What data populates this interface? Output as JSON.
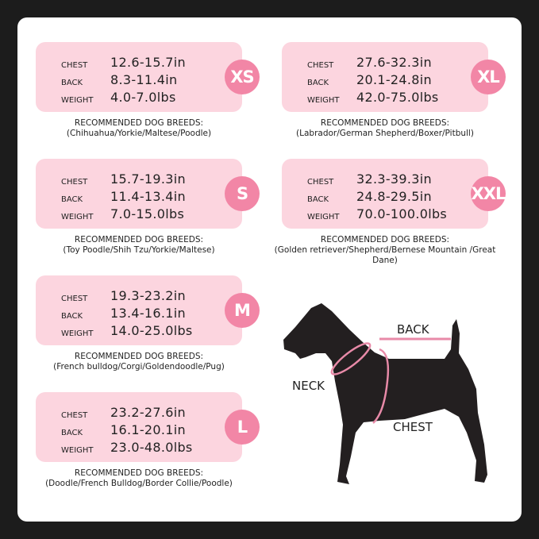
{
  "labels": {
    "chest": "CHEST",
    "back": "BACK",
    "weight": "WEIGHT",
    "recommended": "RECOMMENDED DOG BREEDS:"
  },
  "sizes": [
    {
      "size": "XS",
      "chest": "12.6-15.7in",
      "back": "8.3-11.4in",
      "weight": "4.0-7.0lbs",
      "breeds": "(Chihuahua/Yorkie/Maltese/Poodle)"
    },
    {
      "size": "S",
      "chest": "15.7-19.3in",
      "back": "11.4-13.4in",
      "weight": "7.0-15.0lbs",
      "breeds": "(Toy Poodle/Shih Tzu/Yorkie/Maltese)"
    },
    {
      "size": "M",
      "chest": "19.3-23.2in",
      "back": "13.4-16.1in",
      "weight": "14.0-25.0lbs",
      "breeds": "(French bulldog/Corgi/Goldendoodle/Pug)"
    },
    {
      "size": "L",
      "chest": "23.2-27.6in",
      "back": "16.1-20.1in",
      "weight": "23.0-48.0lbs",
      "breeds": "(Doodle/French Bulldog/Border Collie/Poodle)"
    },
    {
      "size": "XL",
      "chest": "27.6-32.3in",
      "back": "20.1-24.8in",
      "weight": "42.0-75.0lbs",
      "breeds": "(Labrador/German Shepherd/Boxer/Pitbull)"
    },
    {
      "size": "XXL",
      "chest": "32.3-39.3in",
      "back": "24.8-29.5in",
      "weight": "70.0-100.0lbs",
      "breeds": "(Golden retriever/Shepherd/Bernese Mountain /Great Dane)"
    }
  ],
  "diagram": {
    "back": "BACK",
    "neck": "NECK",
    "chest": "CHEST"
  },
  "colors": {
    "card": "#fcd5df",
    "badge": "#f286a6",
    "measure_line": "#e88aa8",
    "background": "#1c1c1c"
  }
}
